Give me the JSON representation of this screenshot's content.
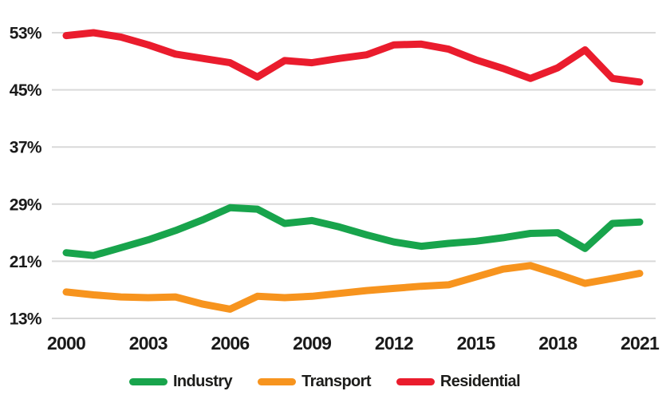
{
  "chart_data": {
    "type": "line",
    "title": "",
    "xlabel": "",
    "ylabel": "",
    "unit": "%",
    "ylim": [
      13,
      53
    ],
    "grid": "horizontal-only",
    "legend_position": "bottom-center",
    "x": [
      2000,
      2001,
      2002,
      2003,
      2004,
      2005,
      2006,
      2007,
      2008,
      2009,
      2010,
      2011,
      2012,
      2013,
      2014,
      2015,
      2016,
      2017,
      2018,
      2019,
      2020,
      2021
    ],
    "x_tick_labels": [
      "2000",
      "2003",
      "2006",
      "2009",
      "2012",
      "2015",
      "2018",
      "2021"
    ],
    "y_tick_labels": [
      "13%",
      "21%",
      "29%",
      "37%",
      "45%",
      "53%"
    ],
    "y_tick_values": [
      13,
      21,
      29,
      37,
      45,
      53
    ],
    "series": [
      {
        "name": "Industry",
        "color": "#18A44C",
        "values": [
          22.2,
          21.8,
          22.9,
          24.0,
          25.3,
          26.8,
          28.5,
          28.3,
          26.3,
          26.7,
          25.8,
          24.7,
          23.7,
          23.1,
          23.5,
          23.8,
          24.3,
          24.9,
          25.0,
          22.8,
          26.3,
          26.5
        ]
      },
      {
        "name": "Transport",
        "color": "#F7941E",
        "values": [
          16.7,
          16.3,
          16.0,
          15.9,
          16.0,
          15.0,
          14.3,
          16.1,
          15.9,
          16.1,
          16.5,
          16.9,
          17.2,
          17.5,
          17.7,
          18.8,
          19.9,
          20.4,
          19.2,
          17.9,
          18.6,
          19.3
        ]
      },
      {
        "name": "Residential",
        "color": "#EA1C2D",
        "values": [
          52.6,
          53.0,
          52.4,
          51.3,
          50.0,
          49.4,
          48.8,
          46.8,
          49.1,
          48.8,
          49.4,
          49.9,
          51.3,
          51.4,
          50.7,
          49.2,
          48.0,
          46.6,
          48.1,
          50.6,
          46.6,
          46.1
        ]
      }
    ],
    "colors": {
      "grid": "#D9D9D9",
      "text": "#1A1A1A",
      "background": "#FFFFFF"
    }
  }
}
